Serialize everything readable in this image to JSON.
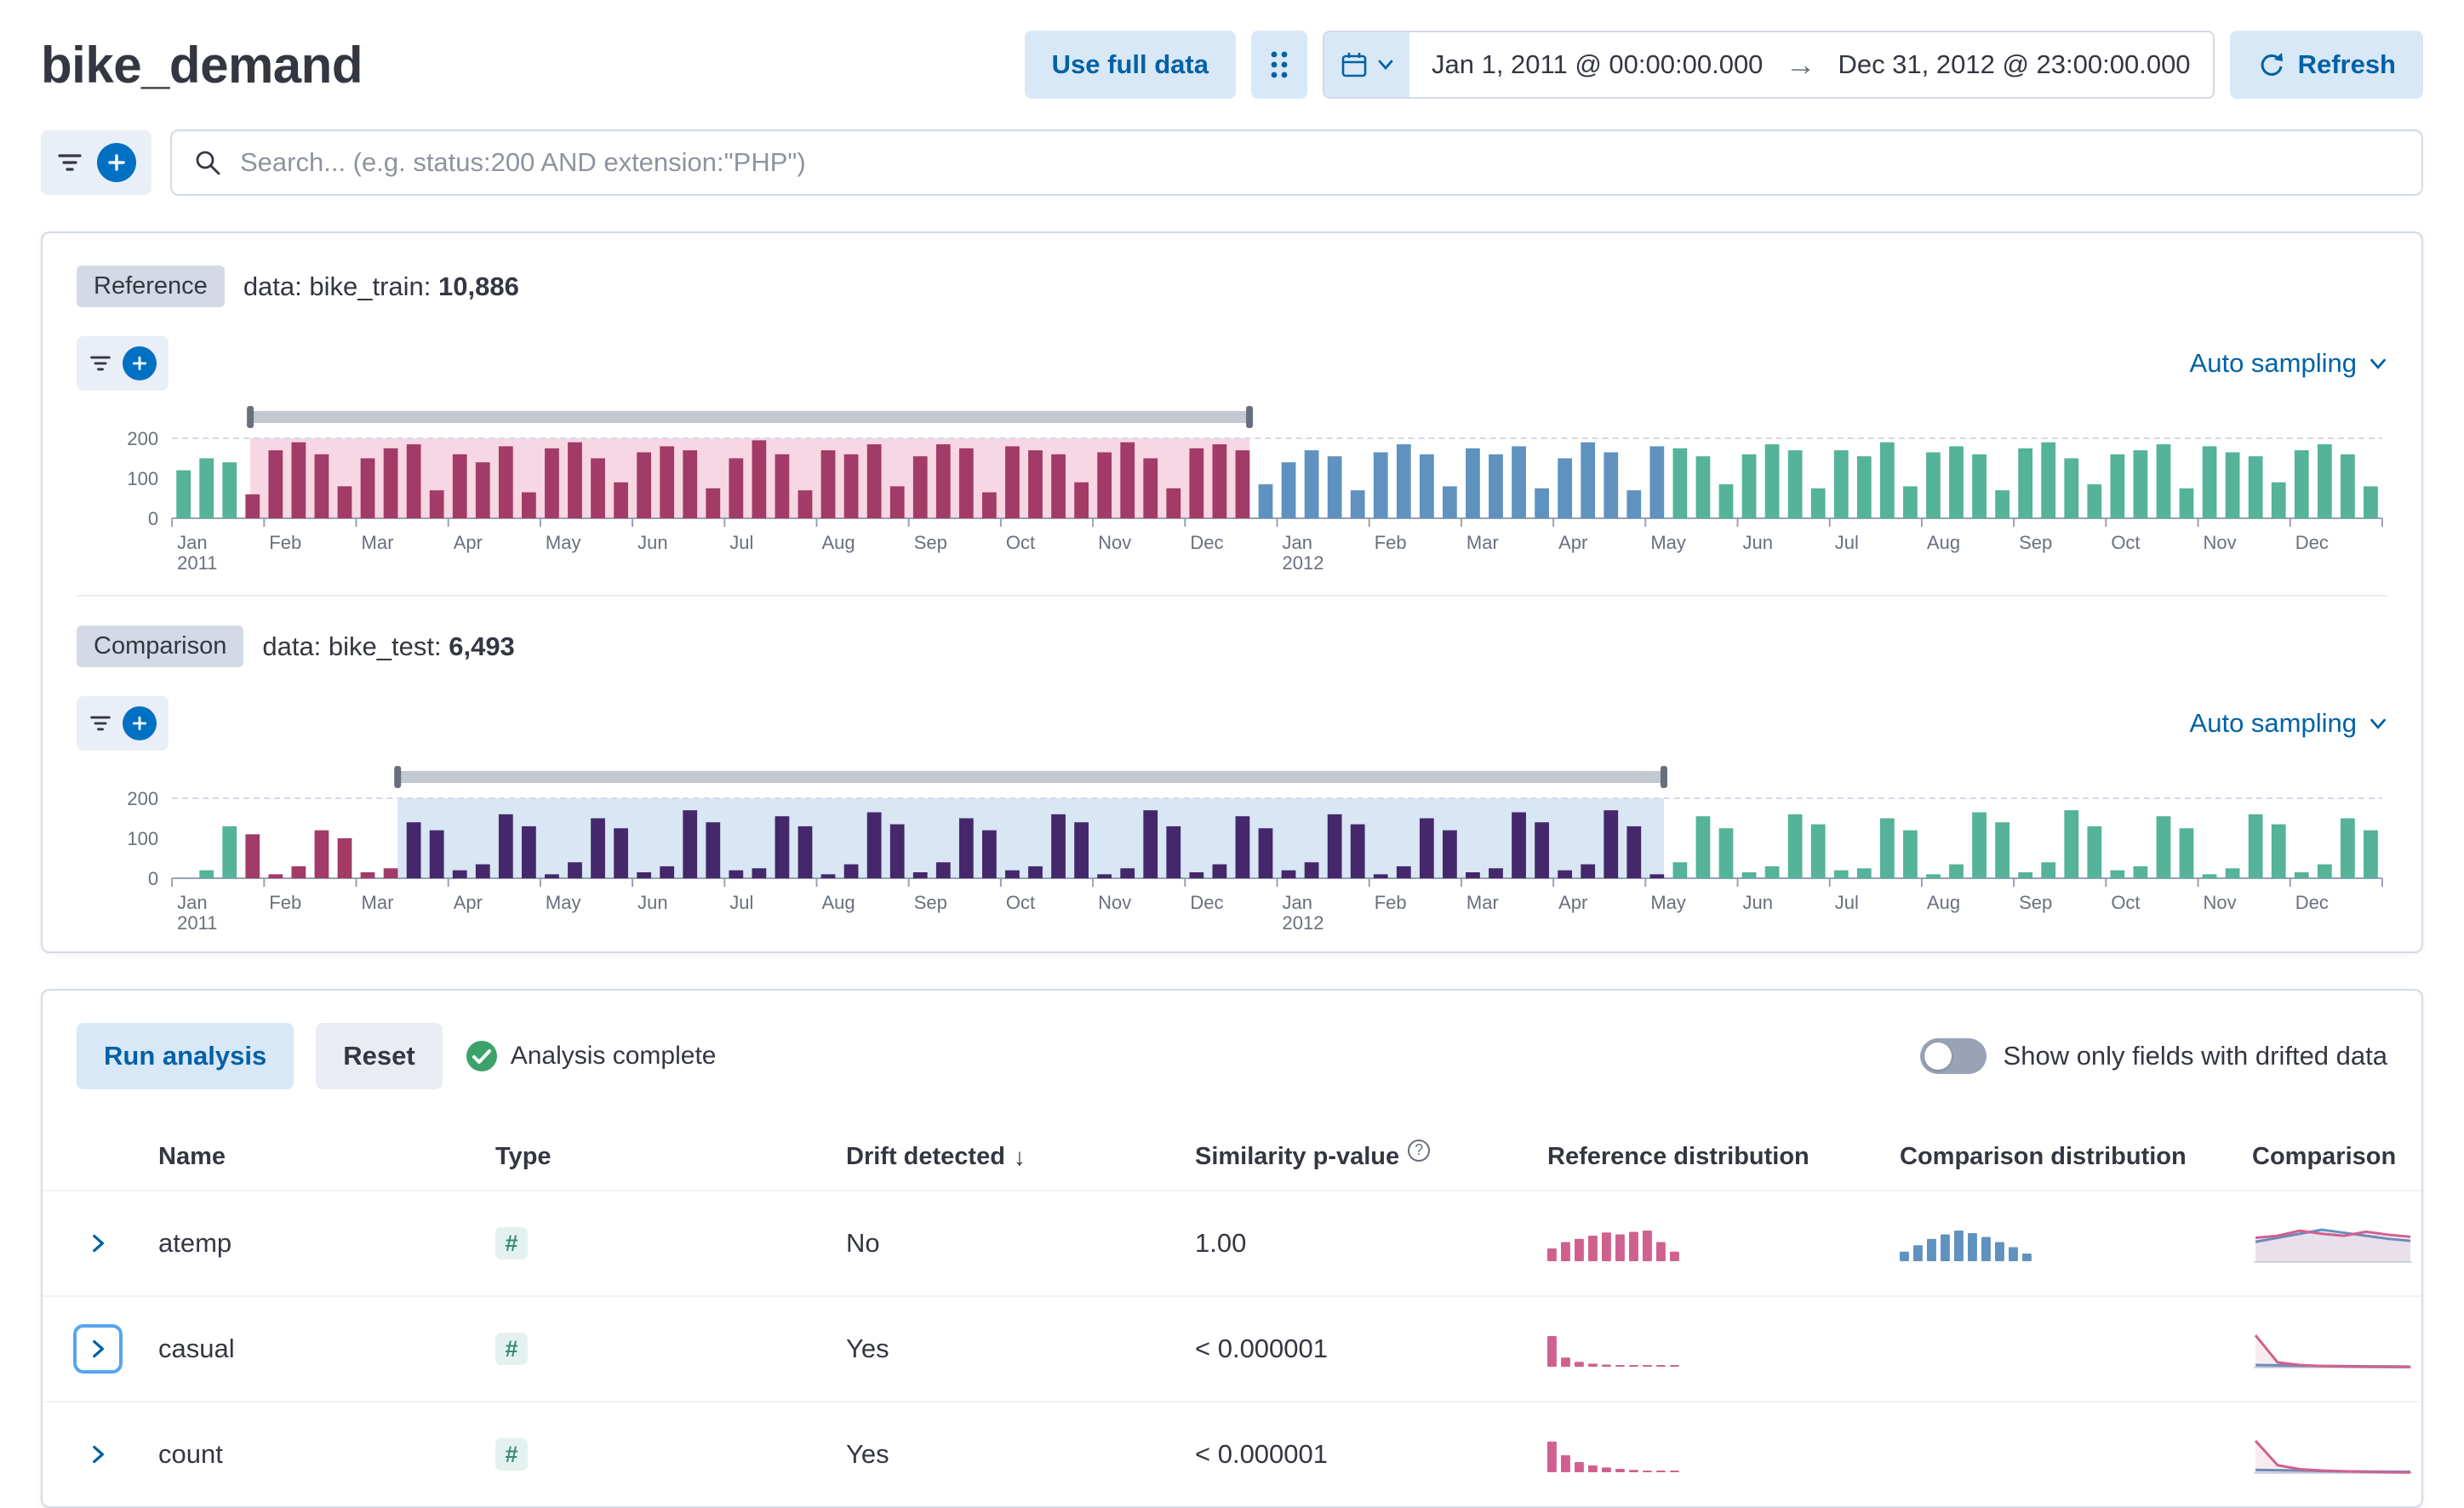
{
  "header": {
    "title": "bike_demand",
    "use_full_data_label": "Use full data",
    "date_range": {
      "start": "Jan 1, 2011 @ 00:00:00.000",
      "end": "Dec 31, 2012 @ 23:00:00.000"
    },
    "refresh_label": "Refresh"
  },
  "search": {
    "placeholder": "Search... (e.g. status:200 AND extension:\"PHP\")"
  },
  "datasets": {
    "reference": {
      "badge": "Reference",
      "label_prefix": "data: bike_train:",
      "doc_count": "10,886",
      "sampling_label": "Auto sampling"
    },
    "comparison": {
      "badge": "Comparison",
      "label_prefix": "data: bike_test:",
      "doc_count": "6,493",
      "sampling_label": "Auto sampling"
    }
  },
  "analysis": {
    "run_label": "Run analysis",
    "reset_label": "Reset",
    "status_label": "Analysis complete",
    "toggle_label": "Show only fields with drifted data"
  },
  "colors": {
    "accent_blue": "#0061a6",
    "button_light_blue": "#d9e8f6",
    "text": "#343741",
    "subtle_text": "#69707d",
    "border": "#d3dae6",
    "bar_default": "#54b399",
    "bar_reference": "#a23b68",
    "bar_comparison_range": "#6092c0",
    "bar_comparison_selected": "#44286b",
    "band_reference": "#f1b6cc",
    "band_comparison": "#b9d2ea",
    "brush_bar": "#c3c8d1",
    "brush_handle": "#69707d",
    "mini_ref": "#d0618e",
    "mini_comp": "#6092c0",
    "success_green": "#3ca269",
    "toggle_off": "#99a3b5"
  },
  "chart_data": [
    {
      "id": "reference_histogram",
      "type": "bar",
      "role": "reference",
      "title": "bike_train document count over time",
      "ylim": [
        0,
        200
      ],
      "y_ticks": [
        200,
        100,
        0
      ],
      "month_labels": [
        "Jan",
        "Feb",
        "Mar",
        "Apr",
        "May",
        "Jun",
        "Jul",
        "Aug",
        "Sep",
        "Oct",
        "Nov",
        "Dec",
        "Jan",
        "Feb",
        "Mar",
        "Apr",
        "May",
        "Jun",
        "Jul",
        "Aug",
        "Sep",
        "Oct",
        "Nov",
        "Dec"
      ],
      "year_labels": {
        "0": "2011",
        "12": "2012"
      },
      "bars_per_month": 4,
      "values": [
        120,
        150,
        140,
        60,
        170,
        190,
        160,
        80,
        150,
        175,
        185,
        70,
        160,
        140,
        180,
        65,
        175,
        190,
        150,
        90,
        165,
        180,
        170,
        75,
        150,
        195,
        160,
        70,
        170,
        160,
        185,
        80,
        155,
        185,
        175,
        65,
        180,
        170,
        160,
        90,
        165,
        190,
        150,
        75,
        175,
        185,
        170,
        85,
        140,
        170,
        155,
        70,
        165,
        185,
        160,
        80,
        175,
        160,
        180,
        75,
        150,
        190,
        165,
        70,
        180,
        175,
        155,
        85,
        160,
        185,
        170,
        75,
        170,
        155,
        190,
        80,
        165,
        180,
        160,
        70,
        175,
        190,
        150,
        85,
        160,
        170,
        185,
        75,
        180,
        165,
        155,
        90,
        170,
        185,
        160,
        80
      ],
      "reference_selection_months": [
        0.85,
        11.7
      ],
      "comparison_selection_months": [
        2.45,
        16.2
      ]
    },
    {
      "id": "comparison_histogram",
      "type": "bar",
      "role": "comparison",
      "title": "bike_test document count over time",
      "ylim": [
        0,
        200
      ],
      "y_ticks": [
        200,
        100,
        0
      ],
      "month_labels": [
        "Jan",
        "Feb",
        "Mar",
        "Apr",
        "May",
        "Jun",
        "Jul",
        "Aug",
        "Sep",
        "Oct",
        "Nov",
        "Dec",
        "Jan",
        "Feb",
        "Mar",
        "Apr",
        "May",
        "Jun",
        "Jul",
        "Aug",
        "Sep",
        "Oct",
        "Nov",
        "Dec"
      ],
      "year_labels": {
        "0": "2011",
        "12": "2012"
      },
      "bars_per_month": 4,
      "values": [
        0,
        20,
        130,
        110,
        10,
        30,
        120,
        100,
        15,
        25,
        140,
        120,
        20,
        35,
        160,
        130,
        10,
        40,
        150,
        125,
        15,
        30,
        170,
        140,
        20,
        25,
        155,
        130,
        10,
        35,
        165,
        135,
        15,
        40,
        150,
        120,
        20,
        30,
        160,
        140,
        10,
        25,
        170,
        130,
        15,
        35,
        155,
        125,
        20,
        40,
        160,
        135,
        10,
        30,
        150,
        120,
        15,
        25,
        165,
        140,
        20,
        35,
        170,
        130,
        10,
        40,
        155,
        125,
        15,
        30,
        160,
        135,
        20,
        25,
        150,
        120,
        10,
        35,
        165,
        140,
        15,
        40,
        170,
        130,
        20,
        30,
        155,
        125,
        10,
        25,
        160,
        135,
        15,
        35,
        150,
        120
      ],
      "reference_selection_months": [
        0.85,
        11.7
      ],
      "comparison_selection_months": [
        2.45,
        16.2
      ]
    }
  ],
  "table": {
    "headers": [
      "Name",
      "Type",
      "Drift detected",
      "Similarity p-value",
      "Reference distribution",
      "Comparison distribution",
      "Comparison"
    ],
    "rows": [
      {
        "name": "atemp",
        "type": "#",
        "drift": "No",
        "pvalue": "1.00",
        "ref_dist": [
          2,
          3,
          3.5,
          4,
          4.5,
          4.2,
          4.6,
          4.8,
          3,
          1.5
        ],
        "comp_dist": [
          1.5,
          2.5,
          3.5,
          4.2,
          4.8,
          4.4,
          3.8,
          3,
          2.2,
          1.2
        ],
        "comparison": {
          "ref_line": [
            2.4,
            2.6,
            3.1,
            2.8,
            2.6,
            3.0,
            2.7,
            2.5
          ],
          "comp_line": [
            2.0,
            2.4,
            2.8,
            3.2,
            2.9,
            2.6,
            2.3,
            2.1
          ]
        }
      },
      {
        "name": "casual",
        "type": "#",
        "drift": "Yes",
        "pvalue": "< 0.000001",
        "ref_dist": [
          10,
          3,
          1.6,
          1,
          0.7,
          0.5,
          0.4,
          0.3,
          0.25,
          0.2
        ],
        "comp_dist": [],
        "comparison": {
          "ref_line": [
            10,
            1.6,
            0.8,
            0.5,
            0.35,
            0.25,
            0.2,
            0.15
          ],
          "comp_line": [
            0.8,
            0.7,
            0.6,
            0.5,
            0.45,
            0.4,
            0.35,
            0.3
          ]
        }
      },
      {
        "name": "count",
        "type": "#",
        "drift": "Yes",
        "pvalue": "< 0.000001",
        "ref_dist": [
          9,
          5,
          3,
          2,
          1.4,
          1,
          0.7,
          0.5,
          0.35,
          0.25
        ],
        "comp_dist": [],
        "comparison": {
          "ref_line": [
            9,
            2.2,
            1.1,
            0.7,
            0.5,
            0.35,
            0.25,
            0.2
          ],
          "comp_line": [
            0.9,
            0.8,
            0.7,
            0.6,
            0.5,
            0.45,
            0.4,
            0.35
          ]
        }
      }
    ]
  }
}
